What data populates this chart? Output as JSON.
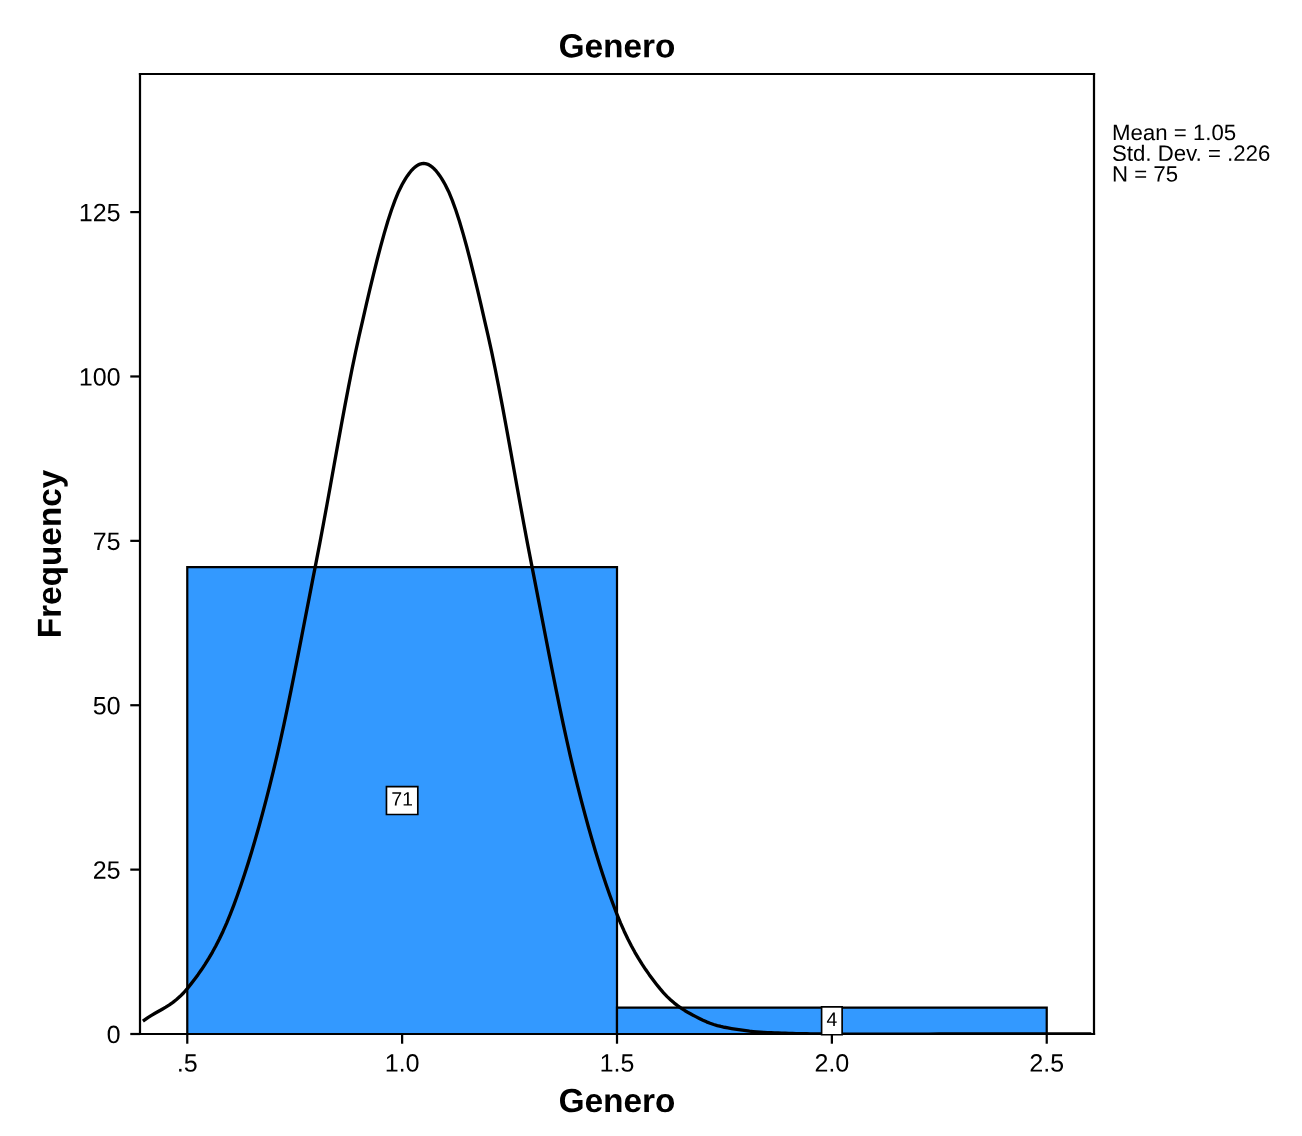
{
  "chart_data": {
    "type": "histogram",
    "title": "Genero",
    "xlabel": "Genero",
    "ylabel": "Frequency",
    "bins": [
      0.5,
      1.5,
      2.5
    ],
    "values": [
      71,
      4
    ],
    "color": "#3399ff",
    "value_labels": [
      "71",
      "4"
    ],
    "series": [
      {
        "type": "line",
        "color": "#000000",
        "x": [
          0.4,
          0.5,
          0.6,
          0.7,
          0.8,
          0.9,
          1.0,
          1.05,
          1.1,
          1.2,
          1.3,
          1.4,
          1.5,
          1.6,
          1.7,
          1.8,
          1.9,
          2.0,
          2.3,
          2.6
        ],
        "values": [
          2.1,
          6.9,
          18.2,
          39.9,
          71.8,
          106.2,
          129.2,
          132.4,
          129.2,
          106.2,
          71.8,
          39.9,
          18.2,
          6.9,
          2.1,
          0.5,
          0.1,
          0,
          0,
          0
        ]
      }
    ],
    "xlim": [
      0.39,
      2.61
    ],
    "ylim": [
      0,
      146
    ],
    "xticks": [
      {
        "value": 0.5,
        "label": ".5"
      },
      {
        "value": 1.0,
        "label": "1.0"
      },
      {
        "value": 1.5,
        "label": "1.5"
      },
      {
        "value": 2.0,
        "label": "2.0"
      },
      {
        "value": 2.5,
        "label": "2.5"
      }
    ],
    "yticks": [
      0,
      25,
      50,
      75,
      100,
      125
    ],
    "annotations": [
      "Mean = 1.05\nStd. Dev. = .226\nN = 75"
    ],
    "grid": false,
    "legend": false
  }
}
